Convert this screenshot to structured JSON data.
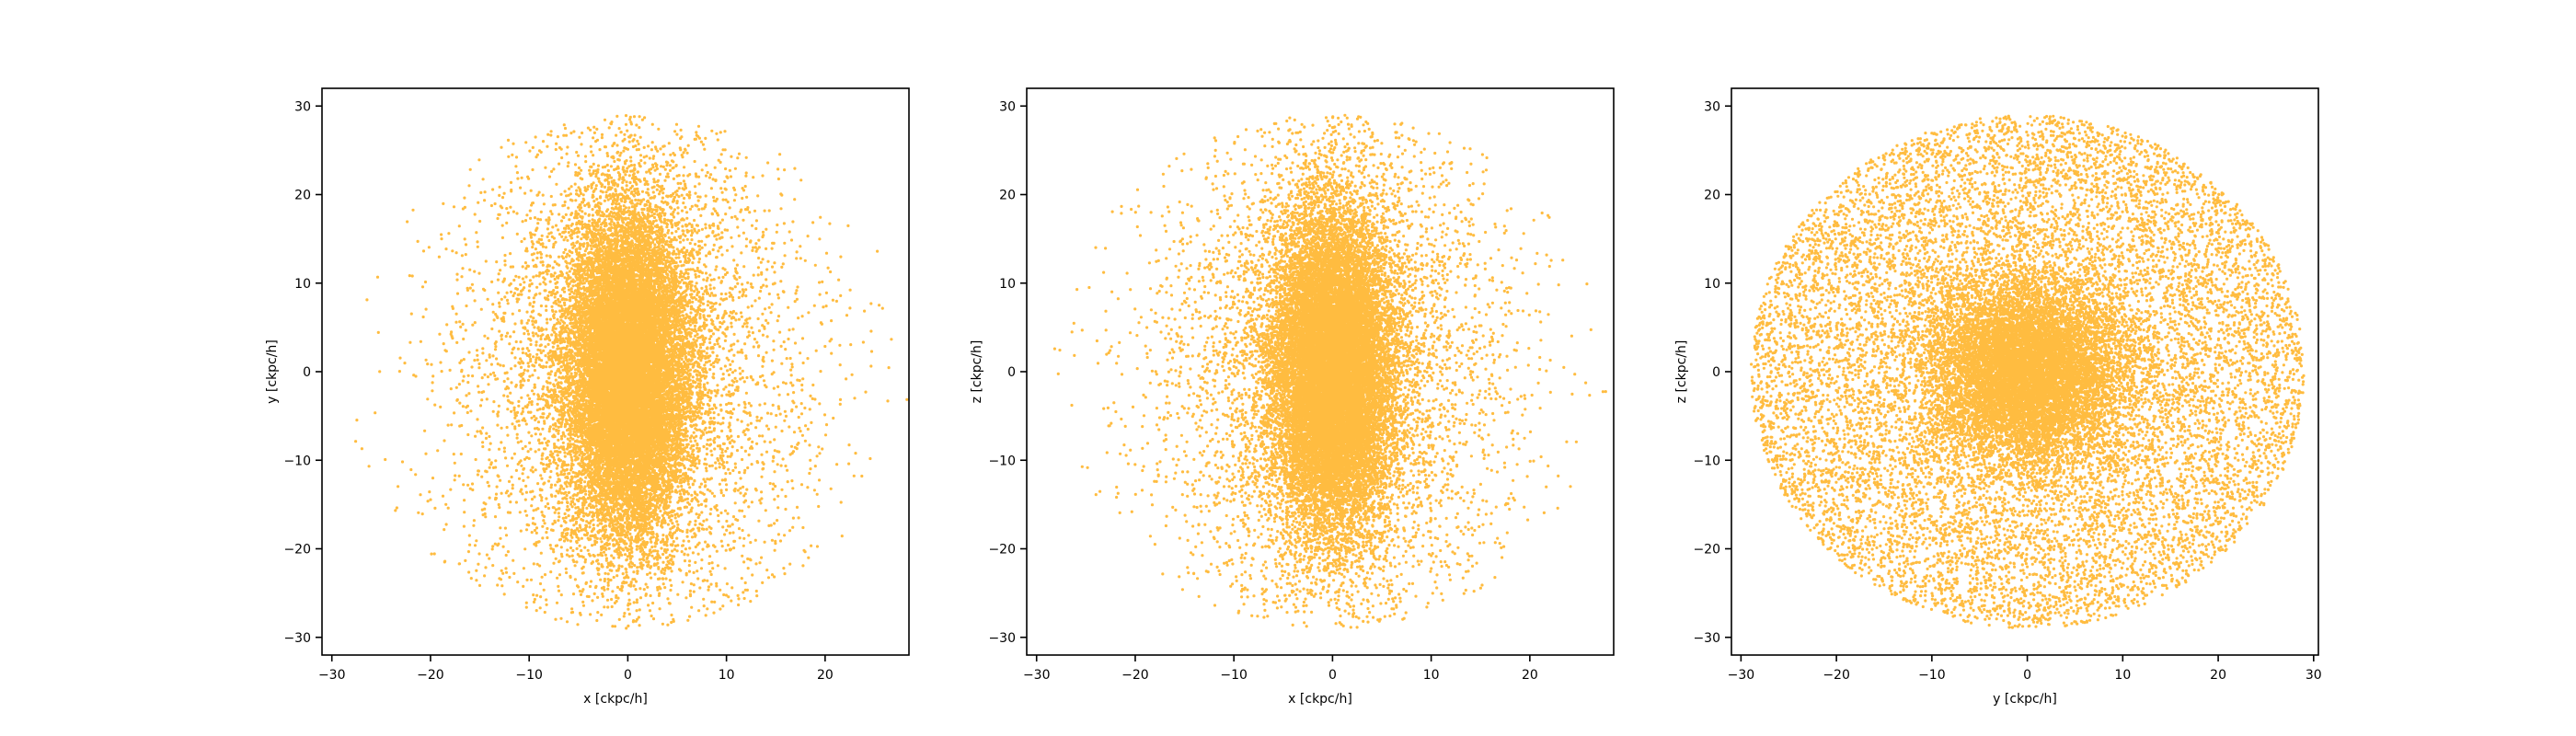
{
  "figure": {
    "background": "#ffffff",
    "marker_color": "#ffa500",
    "marker_alpha": 0.75
  },
  "chart_data": [
    {
      "type": "scatter",
      "title": "",
      "xlabel": "x [ckpc/h]",
      "ylabel": "y [ckpc/h]",
      "xlim": [
        -31,
        28.5
      ],
      "ylim": [
        -32,
        32
      ],
      "xticks": [
        -30,
        -20,
        -10,
        0,
        10,
        20
      ],
      "yticks": [
        -30,
        -20,
        -10,
        0,
        10,
        20,
        30
      ],
      "grid": false,
      "legend": "none",
      "series": [
        {
          "color": "#ffa500",
          "distribution": {
            "shape": "elongated-ellipse",
            "center": [
              0,
              0
            ],
            "core_sigma": [
              3,
              9
            ],
            "halo_sigma": [
              9,
              11
            ],
            "outer_radius": 29,
            "core_fraction": 0.75,
            "point_count": 22000
          }
        }
      ]
    },
    {
      "type": "scatter",
      "title": "",
      "xlabel": "x [ckpc/h]",
      "ylabel": "z [ckpc/h]",
      "xlim": [
        -31,
        28.5
      ],
      "ylim": [
        -32,
        32
      ],
      "xticks": [
        -30,
        -20,
        -10,
        0,
        10,
        20
      ],
      "yticks": [
        -30,
        -20,
        -10,
        0,
        10,
        20,
        30
      ],
      "grid": false,
      "legend": "none",
      "series": [
        {
          "color": "#ffa500",
          "distribution": {
            "shape": "elongated-ellipse",
            "center": [
              0,
              0
            ],
            "core_sigma": [
              3,
              9
            ],
            "halo_sigma": [
              9,
              11
            ],
            "outer_radius": 29,
            "core_fraction": 0.75,
            "point_count": 22000
          }
        }
      ]
    },
    {
      "type": "scatter",
      "title": "",
      "xlabel": "y [ckpc/h]",
      "ylabel": "z [ckpc/h]",
      "xlim": [
        -31,
        30.5
      ],
      "ylim": [
        -32,
        32
      ],
      "xticks": [
        -30,
        -20,
        -10,
        0,
        10,
        20,
        30
      ],
      "yticks": [
        -30,
        -20,
        -10,
        0,
        10,
        20,
        30
      ],
      "grid": false,
      "legend": "none",
      "series": [
        {
          "color": "#ffa500",
          "distribution": {
            "shape": "round-disk",
            "center": [
              0,
              0
            ],
            "core_sigma": [
              5,
              5
            ],
            "halo_sigma": [
              14,
              14
            ],
            "outer_radius": 29,
            "core_fraction": 0.45,
            "point_count": 22000
          }
        }
      ]
    }
  ]
}
